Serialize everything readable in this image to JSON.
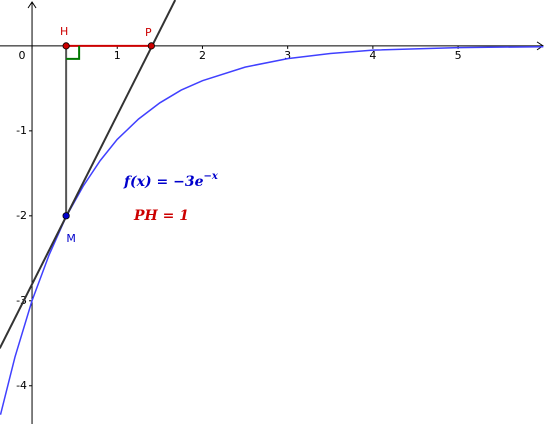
{
  "chart_data": {
    "type": "line",
    "xlim": [
      -0.376,
      6.02
    ],
    "ylim": [
      -4.45,
      0.54
    ],
    "xticks": [
      0,
      1,
      2,
      3,
      4,
      5
    ],
    "yticks": [
      -1,
      -2,
      -3,
      -4
    ],
    "series": [
      {
        "color": "#4040ff",
        "x": [
          -0.37,
          -0.2,
          0,
          0.2,
          0.4,
          0.6,
          0.8,
          1,
          1.25,
          1.5,
          1.75,
          2,
          2.5,
          3,
          3.5,
          4,
          5,
          6
        ],
        "values": [
          -4.34,
          -3.66,
          -3,
          -2.46,
          -2.01,
          -1.65,
          -1.35,
          -1.1,
          -0.86,
          -0.67,
          -0.52,
          -0.41,
          -0.25,
          -0.15,
          -0.09,
          -0.05,
          -0.02,
          -0.01
        ]
      },
      {
        "color": "#333333",
        "x": [
          -0.38,
          1.68
        ],
        "values": [
          -3.56,
          0.54
        ]
      }
    ],
    "points": [
      {
        "label": "H",
        "x": 0.4,
        "y": 0,
        "color": "#cc0000"
      },
      {
        "label": "P",
        "x": 1.4,
        "y": 0,
        "color": "#cc0000"
      },
      {
        "label": "M",
        "x": 0.4,
        "y": -2,
        "color": "#0000cc"
      }
    ],
    "formula": {
      "base": "f(x) = −3e",
      "exponent": "−x",
      "color": "#0000cc"
    },
    "annotation": {
      "text": "PH = 1",
      "color": "#cc0000"
    }
  }
}
